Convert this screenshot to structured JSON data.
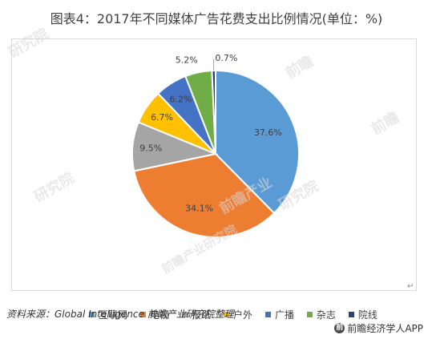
{
  "title": "图表4：2017年不同媒体广告花费支出比例情况(单位：%)",
  "chart_data": {
    "type": "pie",
    "title": "图表4：2017年不同媒体广告花费支出比例情况(单位：%)",
    "categories": [
      "互联网",
      "电视",
      "报纸",
      "户外",
      "广播",
      "杂志",
      "院线"
    ],
    "values": [
      37.6,
      34.1,
      9.5,
      6.7,
      6.2,
      5.2,
      0.7
    ],
    "labels": [
      "37.6%",
      "34.1%",
      "9.5%",
      "6.7%",
      "6.2%",
      "5.2%",
      "0.7%"
    ],
    "colors": [
      "#5b9bd5",
      "#ed7d31",
      "#a5a5a5",
      "#ffc000",
      "#4472c4",
      "#70ad47",
      "#264478"
    ],
    "legend_position": "bottom"
  },
  "footer": {
    "source": "资料来源：Global Intelligence 前瞻产业研究院整理",
    "brand": "前瞻经济学人APP",
    "brand_logo": "前"
  },
  "watermarks": [
    "前瞻",
    "研究院",
    "研究院",
    "前瞻",
    "前瞻产业",
    "前瞻产业研究院",
    "研究院"
  ],
  "return_mark": "↵"
}
